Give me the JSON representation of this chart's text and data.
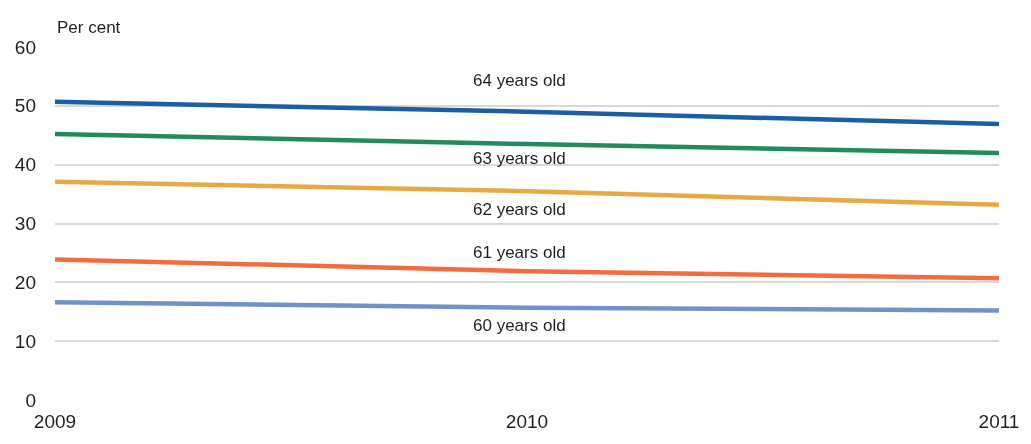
{
  "chart_data": {
    "type": "line",
    "ylabel": "Per cent",
    "x": [
      2009,
      2010,
      2011
    ],
    "series": [
      {
        "name": "64 years old",
        "color": "#1a5ea6",
        "values": [
          50.7,
          49.0,
          46.9
        ]
      },
      {
        "name": "63 years old",
        "color": "#228b5e",
        "values": [
          45.2,
          43.5,
          42.0
        ]
      },
      {
        "name": "62 years old",
        "color": "#e6a944",
        "values": [
          37.1,
          35.5,
          33.2
        ]
      },
      {
        "name": "61 years old",
        "color": "#f26c3f",
        "values": [
          23.9,
          21.9,
          20.7
        ]
      },
      {
        "name": "60 years old",
        "color": "#7093c5",
        "values": [
          16.6,
          15.7,
          15.2
        ]
      }
    ],
    "xlim": [
      2009,
      2011
    ],
    "xticks": [
      2009,
      2010,
      2011
    ],
    "ylim": [
      0,
      60
    ],
    "yticks": [
      0,
      10,
      20,
      30,
      40,
      50,
      60
    ],
    "grid": "y",
    "legend": false,
    "line_style": "solid"
  }
}
